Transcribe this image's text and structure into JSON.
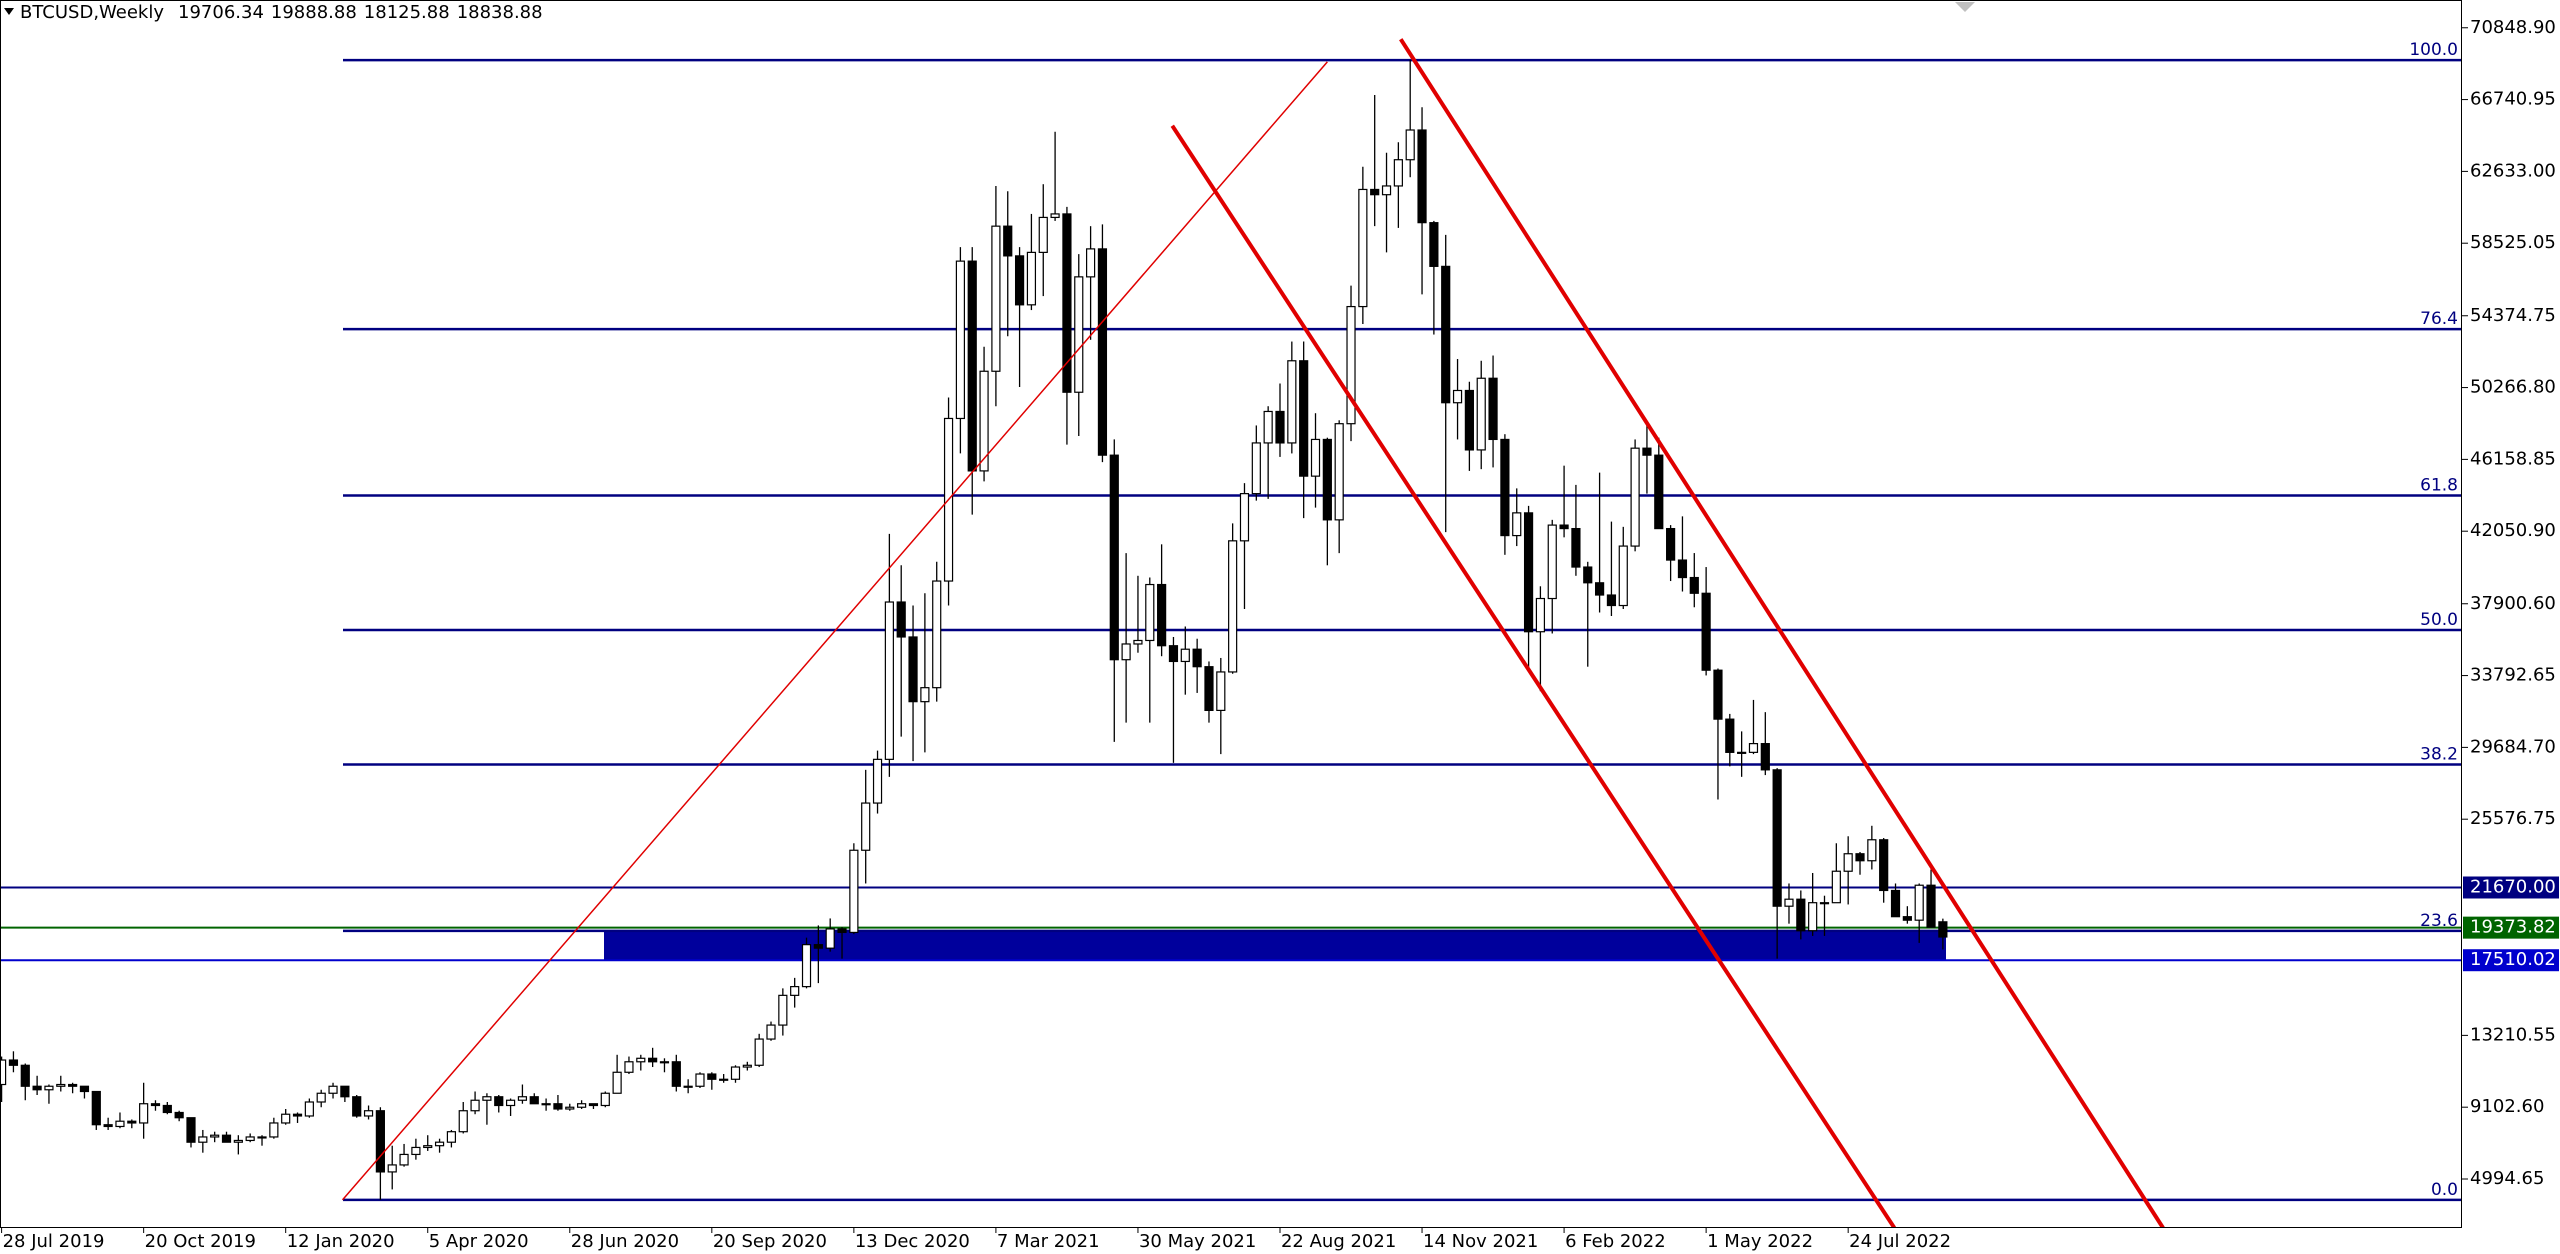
{
  "chart_data": {
    "type": "candlestick",
    "symbol": "BTCUSD,Weekly",
    "up_color": "#ffffff",
    "down_color": "#000000",
    "ylim": [
      2192,
      72437
    ],
    "yticks": [
      {
        "value": 70848.9,
        "label": "70848.90"
      },
      66740.95,
      {
        "value": 62633,
        "label": "62633.00"
      },
      58525.05,
      54374.75,
      {
        "value": 50266.8,
        "label": "50266.80"
      },
      46158.85,
      {
        "value": 42050.9,
        "label": "42050.90"
      },
      {
        "value": 37900.6,
        "label": "37900.60"
      },
      33792.65,
      {
        "value": 29684.7,
        "label": "29684.70"
      },
      25576.75,
      13210.55,
      {
        "value": 9102.6,
        "label": "9102.60"
      },
      4994.65
    ],
    "vgrid": [
      23,
      75,
      127,
      179
    ],
    "categories": [
      "28 Jul 2019",
      null,
      null,
      null,
      null,
      null,
      null,
      null,
      null,
      null,
      null,
      null,
      "20 Oct 2019",
      null,
      null,
      null,
      null,
      null,
      null,
      null,
      null,
      null,
      null,
      null,
      "12 Jan 2020",
      null,
      null,
      null,
      null,
      null,
      null,
      null,
      null,
      null,
      null,
      null,
      "5 Apr 2020",
      null,
      null,
      null,
      null,
      null,
      null,
      null,
      null,
      null,
      null,
      null,
      "28 Jun 2020",
      null,
      null,
      null,
      null,
      null,
      null,
      null,
      null,
      null,
      null,
      null,
      "20 Sep 2020",
      null,
      null,
      null,
      null,
      null,
      null,
      null,
      null,
      null,
      null,
      null,
      "13 Dec 2020",
      null,
      null,
      null,
      null,
      null,
      null,
      null,
      null,
      null,
      null,
      null,
      "7 Mar 2021",
      null,
      null,
      null,
      null,
      null,
      null,
      null,
      null,
      null,
      null,
      null,
      "30 May 2021",
      null,
      null,
      null,
      null,
      null,
      null,
      null,
      null,
      null,
      null,
      null,
      "22 Aug 2021",
      null,
      null,
      null,
      null,
      null,
      null,
      null,
      null,
      null,
      null,
      null,
      "14 Nov 2021",
      null,
      null,
      null,
      null,
      null,
      null,
      null,
      null,
      null,
      null,
      null,
      "6 Feb 2022",
      null,
      null,
      null,
      null,
      null,
      null,
      null,
      null,
      null,
      null,
      null,
      "1 May 2022",
      null,
      null,
      null,
      null,
      null,
      null,
      null,
      null,
      null,
      null,
      null,
      "24 Jul 2022",
      null,
      null,
      null,
      null,
      null,
      null,
      null,
      null
    ],
    "ohlc": [
      [
        10400,
        12000,
        9400,
        11800
      ],
      [
        11800,
        12300,
        11100,
        11500
      ],
      [
        11500,
        11600,
        9500,
        10300
      ],
      [
        10300,
        10900,
        9800,
        10100
      ],
      [
        10100,
        10400,
        9300,
        10300
      ],
      [
        10300,
        10900,
        10000,
        10400
      ],
      [
        10400,
        10500,
        9900,
        10300
      ],
      [
        10300,
        10300,
        9600,
        10000
      ],
      [
        10000,
        10000,
        7800,
        8100
      ],
      [
        8100,
        8500,
        7800,
        8000
      ],
      [
        8000,
        8800,
        7900,
        8300
      ],
      [
        8300,
        8400,
        7900,
        8200
      ],
      [
        8200,
        10500,
        7300,
        9300
      ],
      [
        9300,
        9500,
        8900,
        9200
      ],
      [
        9200,
        9400,
        8700,
        8800
      ],
      [
        8800,
        8900,
        8300,
        8500
      ],
      [
        8500,
        8500,
        6800,
        7100
      ],
      [
        7100,
        7800,
        6500,
        7400
      ],
      [
        7400,
        7700,
        7100,
        7500
      ],
      [
        7500,
        7700,
        7100,
        7100
      ],
      [
        7100,
        7500,
        6400,
        7200
      ],
      [
        7200,
        7600,
        7100,
        7400
      ],
      [
        7400,
        7500,
        6900,
        7400
      ],
      [
        7400,
        8500,
        7300,
        8200
      ],
      [
        8200,
        9000,
        8100,
        8700
      ],
      [
        8700,
        8800,
        8200,
        8600
      ],
      [
        8600,
        9600,
        8500,
        9400
      ],
      [
        9400,
        10100,
        9100,
        9900
      ],
      [
        9900,
        10500,
        9600,
        10300
      ],
      [
        10300,
        10300,
        9400,
        9700
      ],
      [
        9700,
        9800,
        8500,
        8600
      ],
      [
        8600,
        9200,
        8400,
        8900
      ],
      [
        8900,
        9100,
        3800,
        5400
      ],
      [
        5400,
        6900,
        4400,
        5800
      ],
      [
        5800,
        7000,
        5700,
        6400
      ],
      [
        6400,
        7300,
        6100,
        6800
      ],
      [
        6800,
        7500,
        6600,
        6900
      ],
      [
        6900,
        7300,
        6500,
        7100
      ],
      [
        7100,
        7800,
        6800,
        7700
      ],
      [
        7700,
        9400,
        7600,
        8900
      ],
      [
        8900,
        10000,
        8700,
        9500
      ],
      [
        9500,
        9900,
        8100,
        9700
      ],
      [
        9700,
        9800,
        8800,
        9200
      ],
      [
        9200,
        9600,
        8600,
        9500
      ],
      [
        9500,
        10400,
        9300,
        9700
      ],
      [
        9700,
        9900,
        9300,
        9300
      ],
      [
        9300,
        9600,
        8900,
        9300
      ],
      [
        9300,
        9800,
        8900,
        9000
      ],
      [
        9000,
        9300,
        8900,
        9100
      ],
      [
        9100,
        9500,
        9000,
        9300
      ],
      [
        9300,
        9300,
        9000,
        9200
      ],
      [
        9200,
        10000,
        9100,
        9900
      ],
      [
        9900,
        12100,
        9900,
        11100
      ],
      [
        11100,
        12000,
        11000,
        11700
      ],
      [
        11700,
        12100,
        11200,
        11900
      ],
      [
        11900,
        12500,
        11400,
        11700
      ],
      [
        11700,
        11900,
        11100,
        11700
      ],
      [
        11700,
        12100,
        10000,
        10300
      ],
      [
        10300,
        10700,
        9900,
        10300
      ],
      [
        10300,
        11100,
        10200,
        11000
      ],
      [
        11000,
        11100,
        10100,
        10700
      ],
      [
        10700,
        11000,
        10500,
        10700
      ],
      [
        10700,
        11500,
        10500,
        11400
      ],
      [
        11400,
        11700,
        11200,
        11500
      ],
      [
        11500,
        13300,
        11400,
        13000
      ],
      [
        13000,
        14000,
        12900,
        13800
      ],
      [
        13800,
        15900,
        13200,
        15500
      ],
      [
        15500,
        16500,
        14800,
        16000
      ],
      [
        16000,
        18800,
        15900,
        18400
      ],
      [
        18400,
        19500,
        16200,
        18200
      ],
      [
        18200,
        19900,
        18000,
        19300
      ],
      [
        19300,
        19400,
        17600,
        19100
      ],
      [
        19100,
        24200,
        19000,
        23800
      ],
      [
        23800,
        28400,
        21900,
        26500
      ],
      [
        26500,
        29500,
        25900,
        29000
      ],
      [
        29000,
        41900,
        28000,
        38000
      ],
      [
        38000,
        40100,
        30300,
        36000
      ],
      [
        36000,
        37800,
        28900,
        32300
      ],
      [
        32300,
        38500,
        29400,
        33100
      ],
      [
        33100,
        40300,
        32300,
        39200
      ],
      [
        39200,
        49700,
        37800,
        48500
      ],
      [
        48500,
        58300,
        46500,
        57500
      ],
      [
        57500,
        58300,
        43000,
        45500
      ],
      [
        45500,
        52600,
        44900,
        51200
      ],
      [
        51200,
        61800,
        49200,
        59500
      ],
      [
        59500,
        61500,
        53200,
        57800
      ],
      [
        57800,
        58300,
        50300,
        55000
      ],
      [
        55000,
        60200,
        54700,
        58000
      ],
      [
        58000,
        61900,
        55500,
        60000
      ],
      [
        60000,
        64900,
        59800,
        60200
      ],
      [
        60200,
        60600,
        47000,
        50000
      ],
      [
        50000,
        57900,
        47500,
        56600
      ],
      [
        56600,
        59500,
        53000,
        58200
      ],
      [
        58200,
        59600,
        46000,
        46400
      ],
      [
        46400,
        47300,
        30000,
        34700
      ],
      [
        34700,
        40800,
        31100,
        35600
      ],
      [
        35600,
        39500,
        35100,
        35800
      ],
      [
        35800,
        39400,
        31100,
        39000
      ],
      [
        39000,
        41300,
        34900,
        35500
      ],
      [
        35500,
        36000,
        28800,
        34600
      ],
      [
        34600,
        36600,
        32700,
        35300
      ],
      [
        35300,
        35900,
        32800,
        34300
      ],
      [
        34300,
        34600,
        31100,
        31800
      ],
      [
        31800,
        34800,
        29300,
        34000
      ],
      [
        34000,
        42500,
        33900,
        41500
      ],
      [
        41500,
        44800,
        37600,
        44200
      ],
      [
        44200,
        48100,
        43800,
        47100
      ],
      [
        47100,
        49200,
        43900,
        48900
      ],
      [
        48900,
        50500,
        46300,
        47100
      ],
      [
        47100,
        52900,
        46500,
        51800
      ],
      [
        51800,
        52900,
        42800,
        45200
      ],
      [
        45200,
        48800,
        43400,
        47300
      ],
      [
        47300,
        47400,
        40100,
        42700
      ],
      [
        42700,
        48400,
        40800,
        48200
      ],
      [
        48200,
        56100,
        47200,
        54900
      ],
      [
        54900,
        62900,
        53900,
        61600
      ],
      [
        61600,
        67000,
        59500,
        61300
      ],
      [
        61300,
        63700,
        58000,
        61800
      ],
      [
        61800,
        64300,
        59400,
        63300
      ],
      [
        63300,
        69000,
        62300,
        65000
      ],
      [
        65000,
        66300,
        55600,
        59700
      ],
      [
        59700,
        59800,
        53300,
        57200
      ],
      [
        57200,
        59000,
        42000,
        49400
      ],
      [
        49400,
        51900,
        47300,
        50100
      ],
      [
        50100,
        50600,
        45500,
        46700
      ],
      [
        46700,
        51800,
        45600,
        50800
      ],
      [
        50800,
        52100,
        45700,
        47300
      ],
      [
        47300,
        47600,
        40700,
        41800
      ],
      [
        41800,
        44500,
        41200,
        43100
      ],
      [
        43100,
        43500,
        34000,
        36300
      ],
      [
        36300,
        38900,
        32900,
        38200
      ],
      [
        38200,
        42700,
        36200,
        42400
      ],
      [
        42400,
        45800,
        41700,
        42200
      ],
      [
        42200,
        44700,
        39500,
        40000
      ],
      [
        40000,
        40300,
        34300,
        39100
      ],
      [
        39100,
        45400,
        37400,
        38400
      ],
      [
        38400,
        42600,
        37200,
        37800
      ],
      [
        37800,
        42300,
        37600,
        41200
      ],
      [
        41200,
        47300,
        40900,
        46800
      ],
      [
        46800,
        48200,
        44200,
        46400
      ],
      [
        46400,
        47400,
        42200,
        42200
      ],
      [
        42200,
        42400,
        39200,
        40400
      ],
      [
        40400,
        42900,
        38600,
        39400
      ],
      [
        39400,
        40800,
        37700,
        38500
      ],
      [
        38500,
        40000,
        33800,
        34100
      ],
      [
        34100,
        34200,
        26700,
        31300
      ],
      [
        31300,
        31600,
        28600,
        29400
      ],
      [
        29400,
        30600,
        28000,
        29400
      ],
      [
        29400,
        32400,
        29300,
        29900
      ],
      [
        29900,
        31700,
        28100,
        28400
      ],
      [
        28400,
        28500,
        17600,
        20600
      ],
      [
        20600,
        21900,
        19600,
        21000
      ],
      [
        21000,
        21500,
        18700,
        19200
      ],
      [
        19200,
        22500,
        18900,
        20800
      ],
      [
        20800,
        21200,
        18900,
        20800
      ],
      [
        20800,
        24200,
        20800,
        22600
      ],
      [
        22600,
        24600,
        20700,
        23600
      ],
      [
        23600,
        23700,
        22400,
        23200
      ],
      [
        23200,
        25200,
        22700,
        24400
      ],
      [
        24400,
        24500,
        20800,
        21500
      ],
      [
        21500,
        21900,
        20000,
        20000
      ],
      [
        20000,
        20600,
        19600,
        19800
      ],
      [
        19800,
        21900,
        18500,
        21800
      ],
      [
        21800,
        22700,
        19400,
        19400
      ],
      [
        19706.34,
        19888.88,
        18125.88,
        18838.88
      ]
    ],
    "fibonacci": {
      "low": 3800,
      "high": 69000,
      "color": "#000080",
      "levels": [
        {
          "value": 100,
          "label": "100.0"
        },
        76.4,
        61.8,
        {
          "value": 50,
          "label": "50.0"
        },
        38.2,
        23.6,
        {
          "value": 0,
          "label": "0.0"
        }
      ]
    },
    "price_lines": [
      {
        "value": 21670,
        "label": "21670.00",
        "color": "#000080"
      },
      {
        "value": 19373.82,
        "color": "#006400"
      },
      {
        "value": 17510.02,
        "color": "#0000cd"
      }
    ],
    "zone": {
      "from": 17510.02,
      "to": 19200,
      "color": "#00009c"
    },
    "trend_lines": [
      {
        "color": "#e00000",
        "width": 1.5,
        "points": [
          [
            28.8,
            3800
          ],
          [
            112,
            68900
          ]
        ]
      },
      {
        "color": "#e00000",
        "width": 4,
        "points": [
          [
            98.9,
            65245
          ],
          [
            159.9,
            2200
          ]
        ]
      },
      {
        "color": "#e00000",
        "width": 4,
        "points": [
          [
            118.2,
            70195
          ],
          [
            182.6,
            2200
          ]
        ]
      }
    ]
  }
}
